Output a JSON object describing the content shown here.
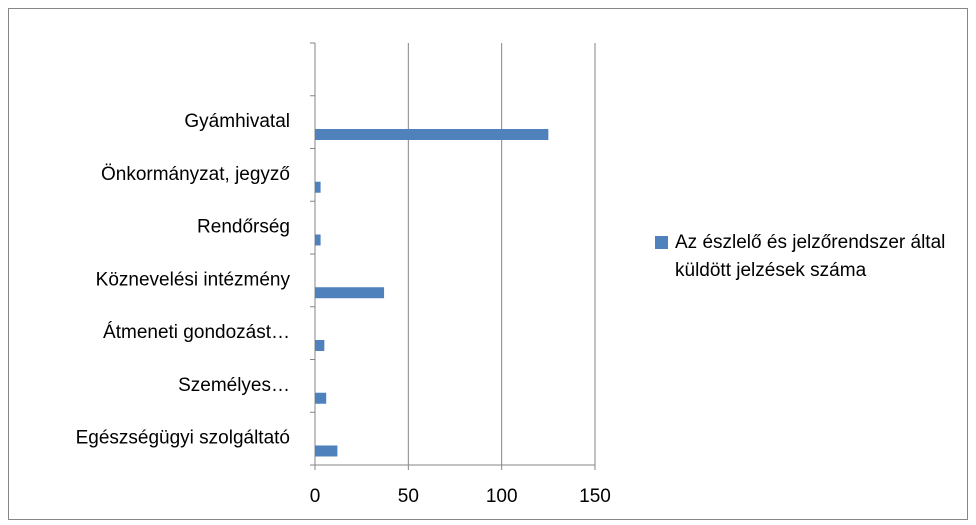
{
  "chart_data": {
    "type": "hbar",
    "categories": [
      null,
      "Gyámhivatal",
      "Önkormányzat, jegyző",
      "Rendőrség",
      "Köznevelési intézmény",
      "Átmeneti gondozást…",
      "Személyes…",
      "Egészségügyi szolgáltató"
    ],
    "series": [
      {
        "name": "Az észlelő és jelzőrendszer által küldött jelzések száma",
        "color": "#4f81bd",
        "values": [
          null,
          125,
          3,
          3,
          37,
          5,
          6,
          12
        ]
      }
    ],
    "xlim": [
      0,
      150
    ],
    "xticks": [
      0,
      50,
      100,
      150
    ],
    "grid": true,
    "legend": "right"
  }
}
